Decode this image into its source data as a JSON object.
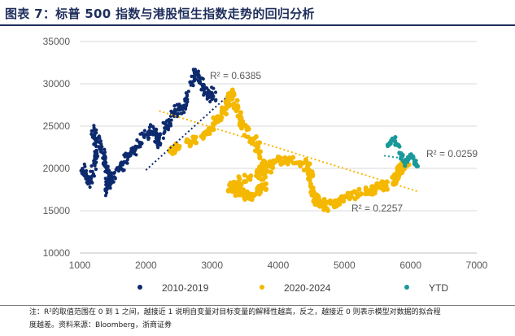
{
  "figure_title": "图表 7：标普 500 指数与港股恒生指数走势的回归分析",
  "note_line1": "注：R²的取值范围在 0 到 1 之间，越接近 1 说明自变量对目标变量的解释性越高，反之，越接近 0 则表示模型对数据的拟合程",
  "note_line2": "度越差。资料来源：Bloomberg，浙商证券",
  "chart_data": {
    "type": "scatter",
    "title": "",
    "xlabel": "",
    "ylabel": "",
    "xlim": [
      1000,
      7000
    ],
    "ylim": [
      10000,
      35000
    ],
    "xticks": [
      "1000",
      "2000",
      "3000",
      "4000",
      "5000",
      "6000",
      "7000"
    ],
    "yticks": [
      "10000",
      "15000",
      "20000",
      "25000",
      "30000",
      "35000"
    ],
    "legend_position": "bottom",
    "colors": {
      "s2010": "#0d2a6e",
      "s2020": "#f5b800",
      "ytd": "#19999a"
    },
    "series": [
      {
        "name": "2010-2019",
        "path": [
          [
            1050,
            20000
          ],
          [
            1150,
            18000
          ],
          [
            1250,
            21500
          ],
          [
            1200,
            24500
          ],
          [
            1350,
            22000
          ],
          [
            1450,
            19000
          ],
          [
            1400,
            17500
          ],
          [
            1600,
            20000
          ],
          [
            1800,
            22000
          ],
          [
            1950,
            23500
          ],
          [
            2100,
            24500
          ],
          [
            2200,
            23000
          ],
          [
            2400,
            26500
          ],
          [
            2600,
            27500
          ],
          [
            2750,
            31500
          ],
          [
            2900,
            29000
          ],
          [
            3050,
            28500
          ]
        ],
        "trend": {
          "x": [
            2000,
            3200
          ],
          "y": [
            19800,
            28300
          ]
        },
        "r2_label": "R² = 0.6385"
      },
      {
        "name": "2020-2024",
        "path": [
          [
            2350,
            22000
          ],
          [
            2900,
            24000
          ],
          [
            3150,
            26500
          ],
          [
            3300,
            29000
          ],
          [
            3450,
            25500
          ],
          [
            3700,
            22500
          ],
          [
            3800,
            18000
          ],
          [
            3600,
            16500
          ],
          [
            3250,
            17500
          ],
          [
            3700,
            19500
          ],
          [
            4000,
            21000
          ],
          [
            4450,
            20500
          ],
          [
            4500,
            17000
          ],
          [
            4700,
            15500
          ],
          [
            5000,
            16500
          ],
          [
            5400,
            17500
          ],
          [
            5750,
            18500
          ],
          [
            5850,
            20000
          ],
          [
            5950,
            20800
          ]
        ],
        "trend": {
          "x": [
            2200,
            6100
          ],
          "y": [
            26800,
            17300
          ]
        },
        "r2_label": "R² = 0.2257"
      },
      {
        "name": "YTD",
        "path": [
          [
            5650,
            22800
          ],
          [
            5750,
            23500
          ],
          [
            5850,
            22000
          ],
          [
            5900,
            20500
          ],
          [
            6000,
            21500
          ],
          [
            6100,
            20200
          ]
        ],
        "trend": {
          "x": [
            5600,
            6150
          ],
          "y": [
            21500,
            20900
          ]
        },
        "r2_label": "R² = 0.0259"
      }
    ]
  }
}
